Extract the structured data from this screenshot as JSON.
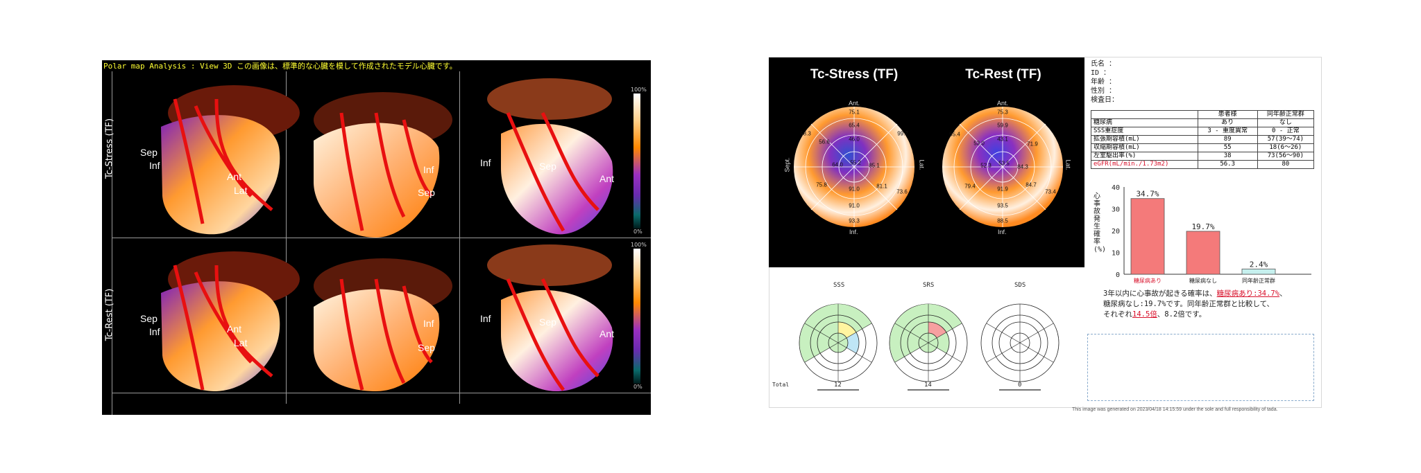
{
  "left_panel": {
    "title": "Polar map Analysis : View 3D  この画像は、標準的な心臓を模して作成されたモデル心臓です。",
    "rows": [
      "Tc-Stress (TF)",
      "Tc-Rest (TF)"
    ],
    "colorbar_max": "100%",
    "colorbar_min": "0%",
    "labels": {
      "sep": "Sep",
      "inf": "Inf",
      "ant": "Ant",
      "lat": "Lat"
    }
  },
  "polar": {
    "stress_title": "Tc-Stress (TF)",
    "rest_title": "Tc-Rest (TF)",
    "ant": "Ant.",
    "inf": "Inf.",
    "sept": "Sept.",
    "lat": "Lat.",
    "stress_values": [
      "75.1",
      "65.4",
      "46.0",
      "56.6",
      "58.3",
      "99.7",
      "64.0",
      "55.2",
      "85.1",
      "75.8",
      "91.0",
      "81.1",
      "73.6",
      "91.0",
      "93.3"
    ],
    "rest_values": [
      "75.3",
      "59.9",
      "43.1",
      "53.0",
      "55.4",
      "71.9",
      "52.3",
      "53.5",
      "84.3",
      "79.4",
      "91.9",
      "84.7",
      "73.4",
      "93.5",
      "88.5"
    ]
  },
  "patient_info": {
    "lines": [
      "氏名  ：",
      "ID    ：",
      "年齢  ：",
      "性別  ：",
      "検査日："
    ]
  },
  "info_table": {
    "headers": [
      "",
      "患者様",
      "同年齢正常群"
    ],
    "rows": [
      [
        "糖尿病",
        "あり",
        "なし"
      ],
      [
        "SSS重症度",
        "3 - 重度異常",
        "0 - 正常"
      ],
      [
        "拡張期容積(mL)",
        "89",
        "57(39～74)"
      ],
      [
        "収縮期容積(mL)",
        "55",
        "18(6～26)"
      ],
      [
        "左室駆出率(%)",
        "38",
        "73(56～90)"
      ],
      [
        "eGFR(mL/min./1.73m2)",
        "56.3",
        "80"
      ]
    ]
  },
  "bar_chart": {
    "ylabel": "心事故発生確率(%)",
    "ymax_tick": "40",
    "ticks": [
      "40",
      "30",
      "20",
      "10",
      "0"
    ],
    "bars": [
      {
        "label": "糖尿病あり",
        "value": 34.7,
        "text": "34.7%",
        "color": "#f47a7a"
      },
      {
        "label": "糖尿病なし",
        "value": 19.7,
        "text": "19.7%",
        "color": "#f47a7a"
      },
      {
        "label": "同年齢正常群",
        "value": 2.4,
        "text": "2.4%",
        "color": "#c6f0ee"
      }
    ]
  },
  "summary": {
    "line1a": "3年以内に心事故が起きる確率は、",
    "line1b": "糖尿病あり:34.7%",
    "line1c": "、",
    "line2": "糖尿病なし:19.7%です。同年齢正常群と比較して、",
    "line3a": "それぞれ",
    "line3b": "14.5倍",
    "line3c": "、8.2倍です。"
  },
  "scores": {
    "sss_title": "SSS",
    "srs_title": "SRS",
    "sds_title": "SDS",
    "total_label": "Total",
    "sss_total": "12",
    "srs_total": "14",
    "sds_total": "0"
  },
  "footer": "This image was generated on 2023/04/18 14:15:59 under the sole and full responsibility of tada."
}
